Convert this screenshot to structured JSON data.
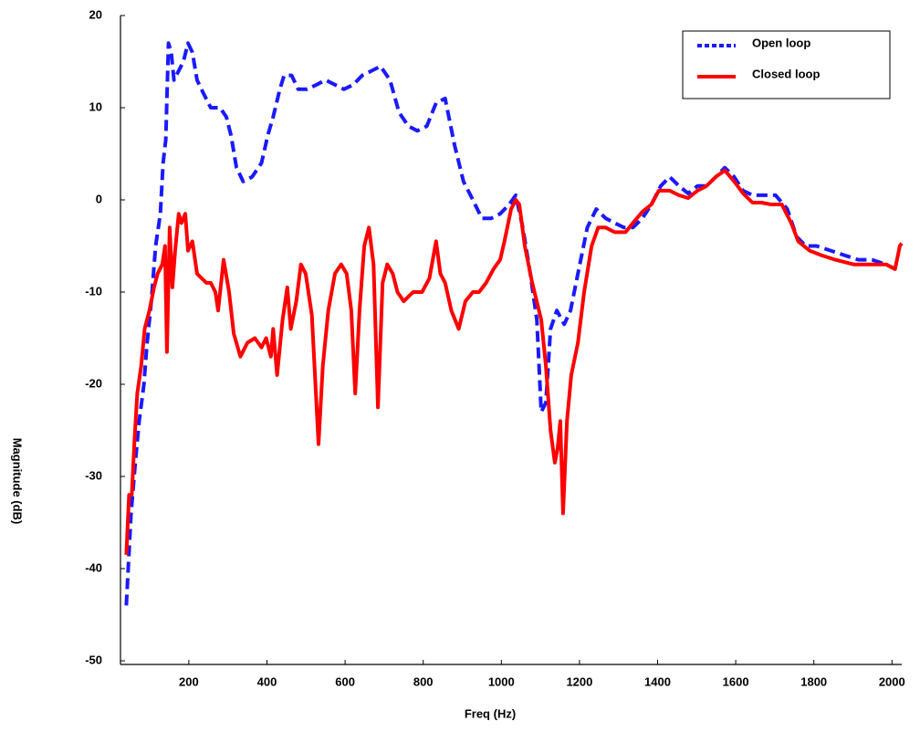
{
  "chart_data": {
    "type": "line",
    "xlabel": "Freq (Hz)",
    "ylabel": "Magnitude (dB)",
    "xlim": [
      25,
      2025
    ],
    "xticks": [
      200,
      400,
      600,
      800,
      1000,
      1200,
      1400,
      1600,
      1800,
      2000
    ],
    "ylim": [
      -50,
      20
    ],
    "yticks": [
      -50,
      -40,
      -30,
      -20,
      -10,
      0,
      10,
      20
    ],
    "legend": "upper right",
    "series": [
      {
        "name": "Open loop",
        "color": "#1a1aff",
        "line_style": "dashed",
        "x": [
          40,
          52,
          64,
          73,
          85,
          92,
          104,
          115,
          127,
          134,
          141,
          148,
          155,
          162,
          174,
          186,
          198,
          209,
          221,
          238,
          256,
          280,
          296,
          308,
          322,
          339,
          362,
          386,
          402,
          416,
          433,
          444,
          463,
          480,
          503,
          527,
          550,
          574,
          597,
          621,
          644,
          668,
          691,
          715,
          738,
          762,
          785,
          809,
          833,
          856,
          880,
          903,
          927,
          950,
          974,
          997,
          1020,
          1037,
          1055,
          1074,
          1091,
          1102,
          1114,
          1126,
          1142,
          1161,
          1177,
          1196,
          1220,
          1243,
          1267,
          1290,
          1314,
          1337,
          1361,
          1384,
          1408,
          1431,
          1455,
          1478,
          1502,
          1525,
          1549,
          1572,
          1596,
          1619,
          1643,
          1666,
          1702,
          1732,
          1756,
          1779,
          1807,
          1843,
          1878,
          1914,
          1949,
          1985,
          2008
        ],
        "values": [
          -44,
          -34,
          -28,
          -24,
          -20,
          -16,
          -11,
          -5,
          -1.5,
          4,
          6.5,
          17,
          16,
          13,
          14,
          15,
          17,
          16,
          13,
          11.5,
          10,
          10,
          9,
          7,
          3.5,
          2,
          2.5,
          4,
          7,
          9,
          12,
          13.5,
          13.5,
          12,
          12,
          12.5,
          13,
          12.5,
          12,
          12.5,
          13.5,
          14,
          14.5,
          13,
          9.5,
          8,
          7.5,
          8,
          10.5,
          11,
          6,
          2,
          0,
          -2,
          -2,
          -1.5,
          -0.5,
          0.5,
          -3,
          -8,
          -13,
          -23,
          -22,
          -14,
          -12,
          -13.5,
          -12,
          -8,
          -3,
          -1,
          -2,
          -2.5,
          -3,
          -3,
          -2,
          -0.5,
          1.5,
          2.5,
          1.5,
          0.7,
          1.5,
          1.5,
          2.5,
          3.5,
          2.5,
          1,
          0.5,
          0.5,
          0.5,
          -1,
          -4,
          -5,
          -5,
          -5.5,
          -6,
          -6.5,
          -6.5,
          -7,
          -7.5
        ]
      },
      {
        "name": "Closed loop",
        "color": "#ff0000",
        "line_style": "solid",
        "x": [
          40,
          47,
          54,
          61,
          68,
          78,
          87,
          99,
          111,
          120,
          132,
          139,
          144,
          151,
          158,
          165,
          174,
          181,
          191,
          198,
          209,
          221,
          233,
          245,
          256,
          268,
          275,
          289,
          303,
          315,
          332,
          350,
          369,
          386,
          398,
          410,
          416,
          426,
          440,
          452,
          461,
          475,
          487,
          499,
          515,
          532,
          543,
          557,
          574,
          590,
          604,
          616,
          626,
          637,
          649,
          661,
          673,
          684,
          696,
          708,
          722,
          734,
          750,
          774,
          797,
          816,
          833,
          844,
          856,
          872,
          891,
          908,
          927,
          943,
          961,
          980,
          997,
          1008,
          1025,
          1037,
          1046,
          1060,
          1079,
          1102,
          1114,
          1126,
          1137,
          1144,
          1151,
          1158,
          1168,
          1179,
          1196,
          1212,
          1231,
          1248,
          1267,
          1290,
          1318,
          1337,
          1361,
          1384,
          1403,
          1431,
          1455,
          1478,
          1502,
          1525,
          1549,
          1572,
          1596,
          1619,
          1643,
          1666,
          1690,
          1718,
          1742,
          1760,
          1789,
          1819,
          1855,
          1902,
          1949,
          1985,
          2008,
          2020,
          2025
        ],
        "values": [
          -38.5,
          -32,
          -32,
          -26,
          -21,
          -18,
          -14,
          -12,
          -9.5,
          -8,
          -7,
          -5,
          -16.5,
          -3,
          -9.5,
          -5.5,
          -1.5,
          -2.5,
          -1.5,
          -5.5,
          -4.5,
          -8,
          -8.5,
          -9,
          -9,
          -10,
          -12,
          -6.5,
          -10,
          -14.5,
          -17,
          -15.5,
          -15,
          -16,
          -15,
          -17,
          -14,
          -19,
          -13,
          -9.5,
          -14,
          -11,
          -7,
          -8,
          -12.5,
          -26.5,
          -18,
          -12,
          -8,
          -7,
          -8,
          -12,
          -21,
          -12,
          -5,
          -3,
          -7,
          -22.5,
          -9,
          -7,
          -8,
          -10,
          -11,
          -10,
          -10,
          -8.5,
          -4.5,
          -8,
          -9,
          -12,
          -14,
          -11,
          -10,
          -10,
          -9,
          -7.5,
          -6.5,
          -4.5,
          -1,
          0,
          -0.5,
          -5,
          -9,
          -13,
          -18,
          -25,
          -28.5,
          -27,
          -24,
          -34,
          -24,
          -19,
          -15.5,
          -10,
          -5,
          -3,
          -3,
          -3.5,
          -3.5,
          -2.5,
          -1.3,
          -0.5,
          1,
          1,
          0.5,
          0.2,
          1,
          1.5,
          2.5,
          3.2,
          2,
          0.7,
          -0.3,
          -0.3,
          -0.5,
          -0.5,
          -2.5,
          -4.5,
          -5.5,
          -6,
          -6.5,
          -7,
          -7,
          -7,
          -7.5,
          -5,
          -4.7
        ]
      }
    ]
  }
}
